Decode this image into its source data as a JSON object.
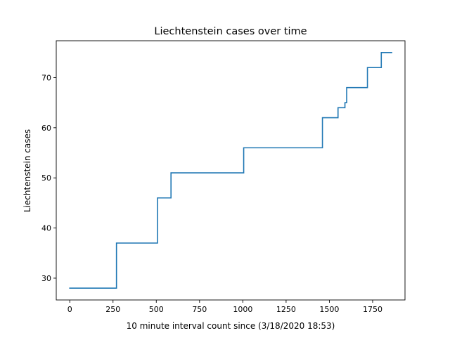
{
  "chart_data": {
    "type": "line",
    "title": "Liechtenstein cases over time",
    "xlabel": "10 minute interval count since (3/18/2020 18:53)",
    "ylabel": "Liechtenstein cases",
    "xlim": [
      -78,
      1937
    ],
    "ylim": [
      25.65,
      77.35
    ],
    "x_ticks": [
      0,
      250,
      500,
      750,
      1000,
      1250,
      1500,
      1750
    ],
    "y_ticks": [
      30,
      40,
      50,
      60,
      70
    ],
    "grid": false,
    "legend": "none",
    "line_color": "#1f77b4",
    "step": true,
    "series": [
      {
        "x": [
          0,
          270,
          505,
          507,
          585,
          1005,
          1460,
          1550,
          1590,
          1600,
          1720,
          1800,
          1860
        ],
        "y": [
          28,
          37,
          37,
          46,
          51,
          56,
          62,
          64,
          65,
          68,
          72,
          75,
          75
        ]
      }
    ]
  }
}
